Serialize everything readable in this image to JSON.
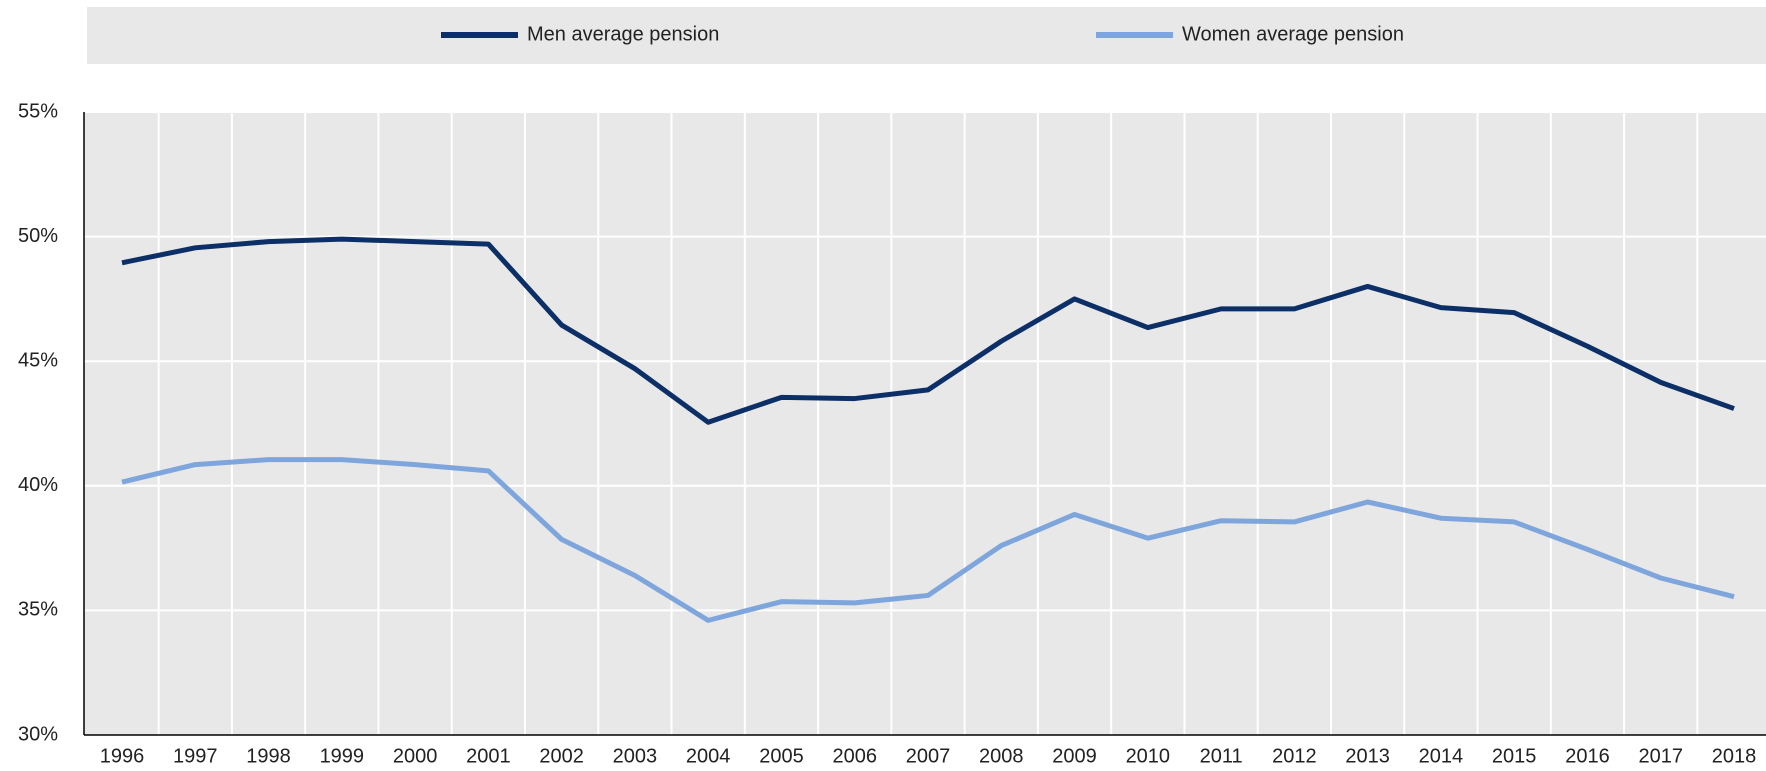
{
  "chart_data": {
    "type": "line",
    "categories": [
      "1996",
      "1997",
      "1998",
      "1999",
      "2000",
      "2001",
      "2002",
      "2003",
      "2004",
      "2005",
      "2006",
      "2007",
      "2008",
      "2009",
      "2010",
      "2011",
      "2012",
      "2013",
      "2014",
      "2015",
      "2016",
      "2017",
      "2018"
    ],
    "series": [
      {
        "name": "Men average pension",
        "color": "#0b2f66",
        "values": [
          48.95,
          49.55,
          49.8,
          49.9,
          49.8,
          49.7,
          46.45,
          44.7,
          42.55,
          43.55,
          43.5,
          43.85,
          45.8,
          47.5,
          46.35,
          47.1,
          47.1,
          48.0,
          47.15,
          46.95,
          45.6,
          44.15,
          43.1
        ]
      },
      {
        "name": "Women average pension",
        "color": "#7ea6dc",
        "values": [
          40.15,
          40.85,
          41.05,
          41.05,
          40.85,
          40.6,
          37.85,
          36.4,
          34.6,
          35.35,
          35.3,
          35.6,
          37.6,
          38.85,
          37.9,
          38.6,
          38.55,
          39.35,
          38.7,
          38.55,
          37.45,
          36.3,
          35.55
        ]
      }
    ],
    "ylim": [
      30,
      55
    ],
    "yticks": [
      {
        "value": 30,
        "label": "30%"
      },
      {
        "value": 35,
        "label": "35%"
      },
      {
        "value": 40,
        "label": "40%"
      },
      {
        "value": 45,
        "label": "45%"
      },
      {
        "value": 50,
        "label": "50%"
      },
      {
        "value": 55,
        "label": "55%"
      }
    ],
    "grid": true,
    "legend": "top"
  }
}
